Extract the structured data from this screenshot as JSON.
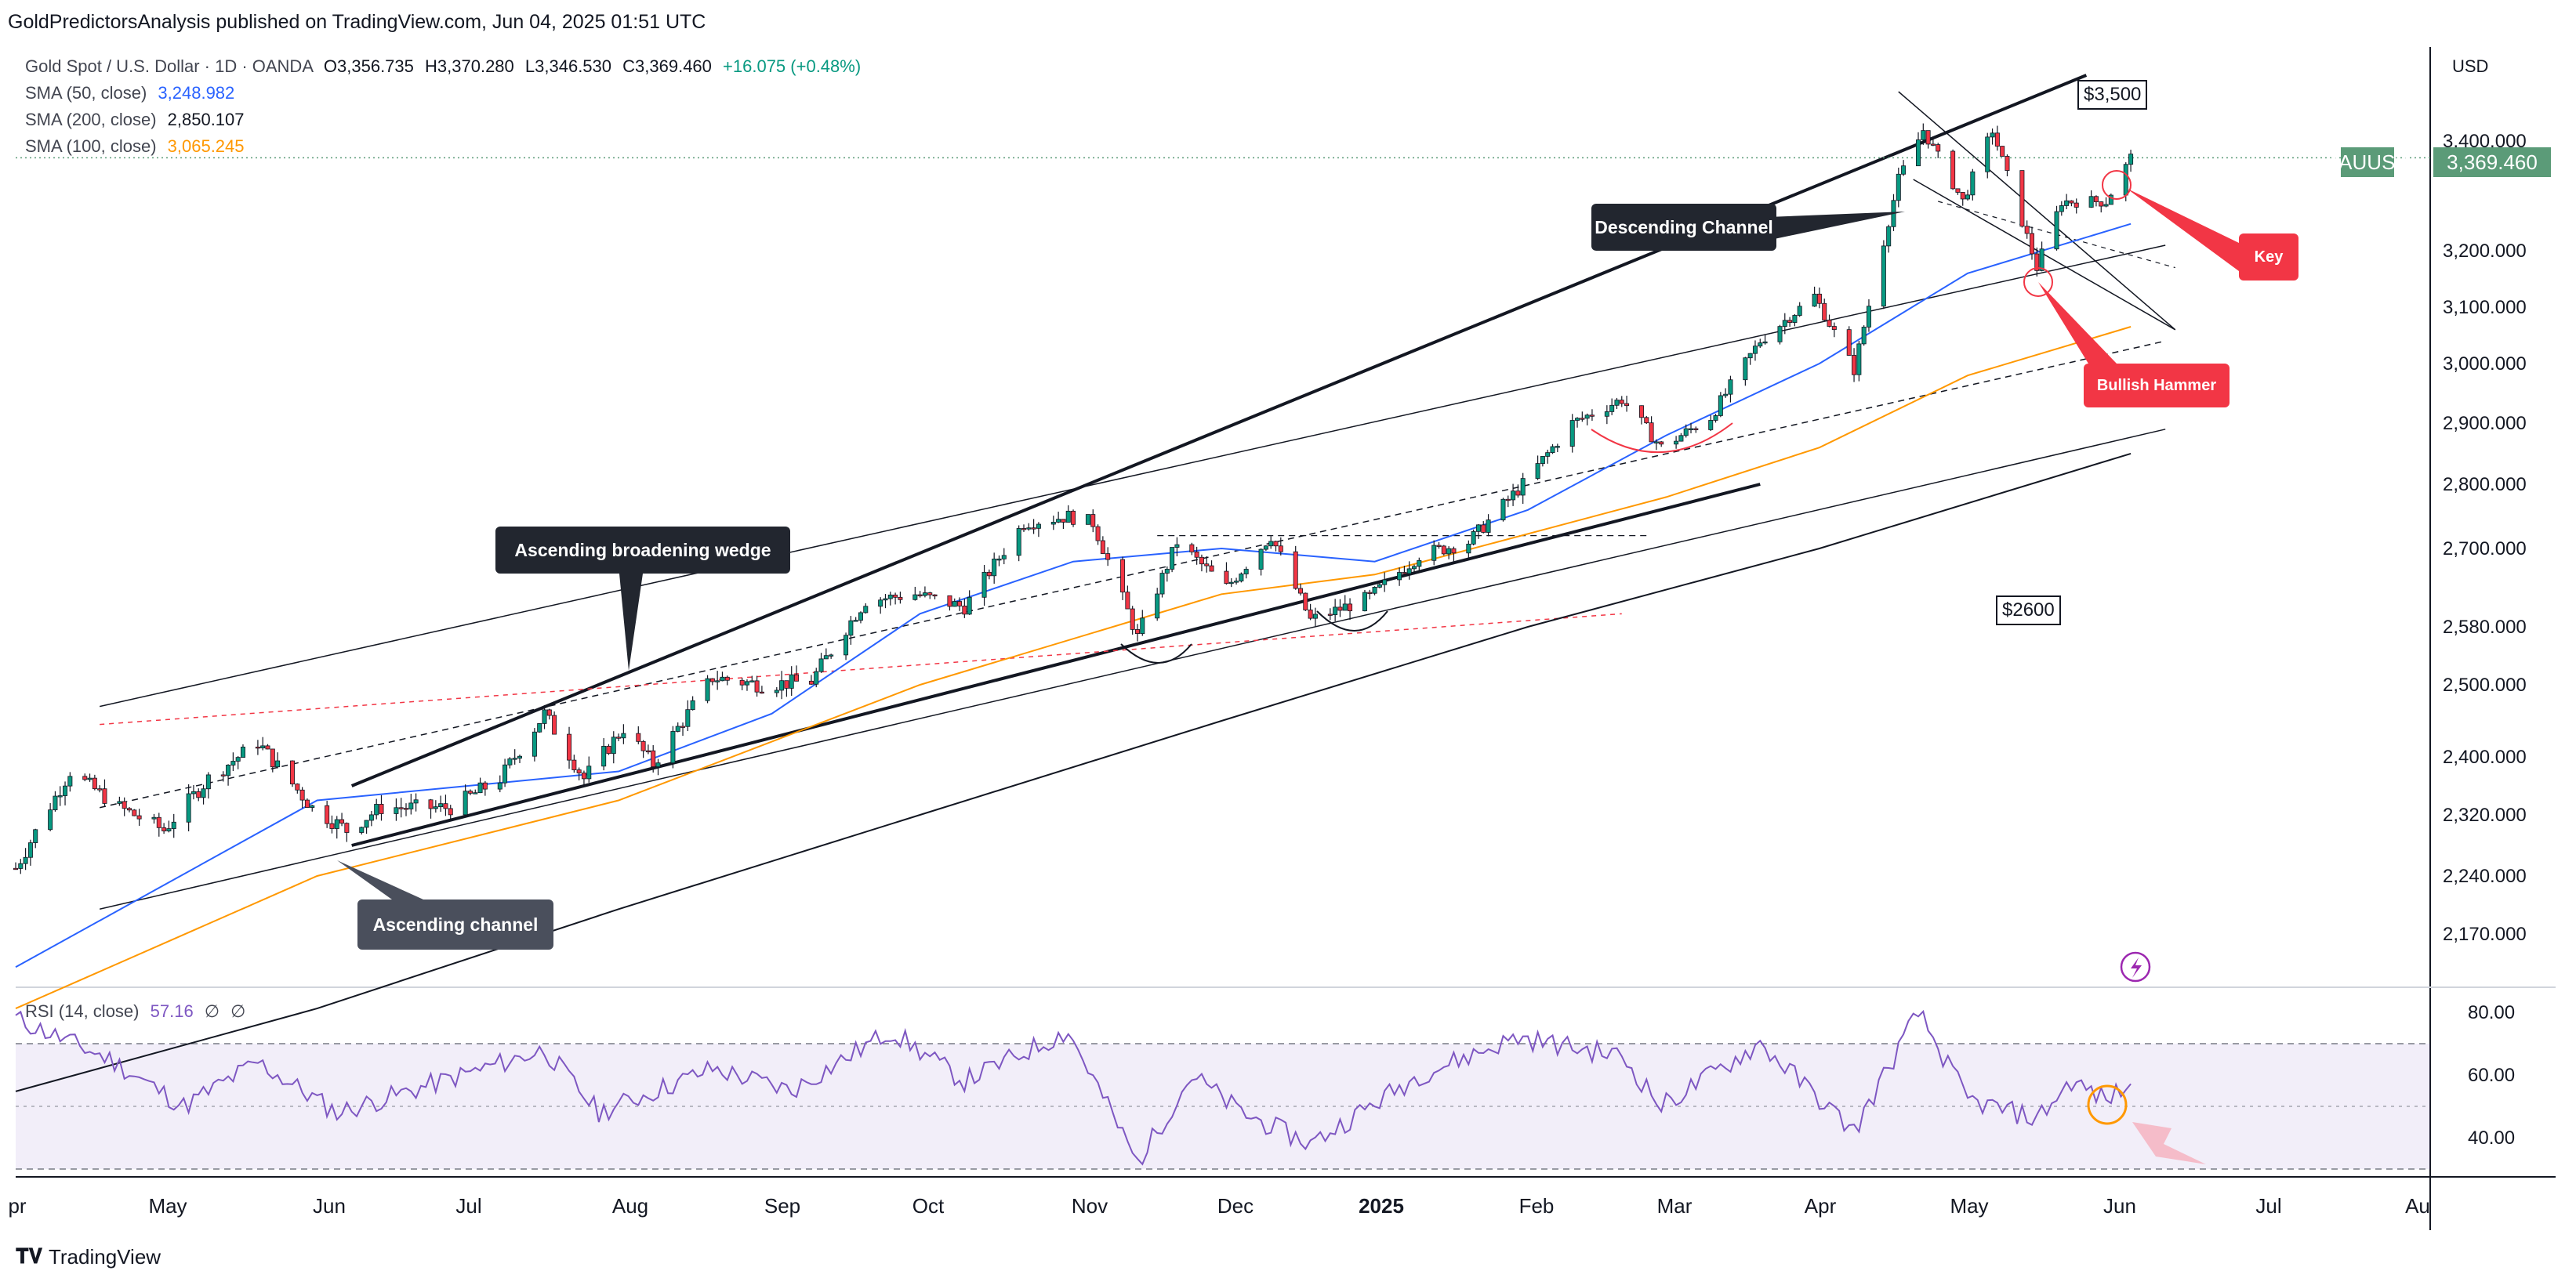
{
  "header": {
    "publisher_line": "GoldPredictorsAnalysis published on TradingView.com, Jun 04, 2025 01:51 UTC"
  },
  "legend": {
    "symbol_line": "Gold Spot / U.S. Dollar · 1D · OANDA",
    "ohlc": {
      "o": "O3,356.735",
      "h": "H3,370.280",
      "l": "L3,346.530",
      "c": "C3,369.460",
      "change": "+16.075 (+0.48%)"
    },
    "sma50": {
      "label": "SMA (50, close)",
      "value": "3,248.982",
      "color": "#2962ff"
    },
    "sma200": {
      "label": "SMA (200, close)",
      "value": "2,850.107",
      "color": "#131722"
    },
    "sma100": {
      "label": "SMA (100, close)",
      "value": "3,065.245",
      "color": "#ff9800"
    }
  },
  "rsi_legend": {
    "label": "RSI (14, close)",
    "value": "57.16",
    "extra1": "∅",
    "extra2": "∅"
  },
  "axis": {
    "currency": "USD",
    "ticker": "XAUUSD",
    "last_price": "3,369.460"
  },
  "annotations": {
    "descending_channel": "Descending Channel",
    "ascending_broadening_wedge": "Ascending broadening wedge",
    "ascending_channel": "Ascending channel",
    "key": "Key",
    "bullish_hammer": "Bullish Hammer",
    "level_3500": "$3,500",
    "level_2600": "$2600"
  },
  "footer": {
    "brand": "TradingView"
  },
  "colors": {
    "up": "#089981",
    "down": "#f23645",
    "rsi": "#7e57c2",
    "sma50": "#2962ff",
    "sma100": "#ff9800",
    "sma200": "#131722"
  },
  "chart_data": {
    "type": "candlestick",
    "title": "Gold Spot / U.S. Dollar · 1D · OANDA",
    "price_ticks": [
      3400,
      3200,
      3100,
      3000,
      2900,
      2800,
      2700,
      2580,
      2500,
      2400,
      2320,
      2240,
      2170
    ],
    "price_tick_labels": [
      "3,400.000",
      "3,200.000",
      "3,100.000",
      "3,000.000",
      "2,900.000",
      "2,800.000",
      "2,700.000",
      "2,580.000",
      "2,500.000",
      "2,400.000",
      "2,320.000",
      "2,240.000",
      "2,170.000"
    ],
    "x_labels": [
      "pr",
      "May",
      "Jun",
      "Jul",
      "Aug",
      "Sep",
      "Oct",
      "Nov",
      "Dec",
      "2025",
      "Feb",
      "Mar",
      "Apr",
      "May",
      "Jun",
      "Jul",
      "Au"
    ],
    "rsi_ticks": [
      80,
      60,
      40
    ],
    "rsi_tick_labels": [
      "80.00",
      "60.00",
      "40.00"
    ],
    "close_path": [
      [
        "2024-04-01",
        2250
      ],
      [
        "2024-04-12",
        2380
      ],
      [
        "2024-04-22",
        2330
      ],
      [
        "2024-05-01",
        2300
      ],
      [
        "2024-05-10",
        2370
      ],
      [
        "2024-05-20",
        2420
      ],
      [
        "2024-05-31",
        2330
      ],
      [
        "2024-06-07",
        2300
      ],
      [
        "2024-06-14",
        2330
      ],
      [
        "2024-06-28",
        2330
      ],
      [
        "2024-07-08",
        2370
      ],
      [
        "2024-07-17",
        2460
      ],
      [
        "2024-07-25",
        2370
      ],
      [
        "2024-08-02",
        2440
      ],
      [
        "2024-08-08",
        2390
      ],
      [
        "2024-08-20",
        2510
      ],
      [
        "2024-08-30",
        2500
      ],
      [
        "2024-09-09",
        2505
      ],
      [
        "2024-09-20",
        2620
      ],
      [
        "2024-09-30",
        2630
      ],
      [
        "2024-10-10",
        2610
      ],
      [
        "2024-10-22",
        2740
      ],
      [
        "2024-10-31",
        2750
      ],
      [
        "2024-11-05",
        2740
      ],
      [
        "2024-11-14",
        2565
      ],
      [
        "2024-11-22",
        2710
      ],
      [
        "2024-12-02",
        2640
      ],
      [
        "2024-12-11",
        2720
      ],
      [
        "2024-12-19",
        2590
      ],
      [
        "2024-12-31",
        2625
      ],
      [
        "2025-01-10",
        2690
      ],
      [
        "2025-01-20",
        2710
      ],
      [
        "2025-01-31",
        2800
      ],
      [
        "2025-02-10",
        2900
      ],
      [
        "2025-02-20",
        2940
      ],
      [
        "2025-02-28",
        2860
      ],
      [
        "2025-03-10",
        2910
      ],
      [
        "2025-03-20",
        3040
      ],
      [
        "2025-03-31",
        3120
      ],
      [
        "2025-04-08",
        2990
      ],
      [
        "2025-04-17",
        3330
      ],
      [
        "2025-04-22",
        3420
      ],
      [
        "2025-04-30",
        3290
      ],
      [
        "2025-05-06",
        3420
      ],
      [
        "2025-05-15",
        3170
      ],
      [
        "2025-05-20",
        3290
      ],
      [
        "2025-05-29",
        3290
      ],
      [
        "2025-06-03",
        3369.46
      ]
    ],
    "sma50": [
      [
        "2024-04-01",
        2130
      ],
      [
        "2024-06-01",
        2340
      ],
      [
        "2024-08-01",
        2380
      ],
      [
        "2024-09-01",
        2460
      ],
      [
        "2024-10-01",
        2600
      ],
      [
        "2024-11-01",
        2680
      ],
      [
        "2024-12-01",
        2700
      ],
      [
        "2025-01-01",
        2680
      ],
      [
        "2025-02-01",
        2760
      ],
      [
        "2025-03-01",
        2880
      ],
      [
        "2025-04-01",
        3000
      ],
      [
        "2025-05-01",
        3160
      ],
      [
        "2025-06-03",
        3248.98
      ]
    ],
    "sma100": [
      [
        "2024-04-01",
        2080
      ],
      [
        "2024-06-01",
        2240
      ],
      [
        "2024-08-01",
        2340
      ],
      [
        "2024-10-01",
        2500
      ],
      [
        "2024-12-01",
        2630
      ],
      [
        "2025-01-01",
        2660
      ],
      [
        "2025-03-01",
        2780
      ],
      [
        "2025-04-01",
        2860
      ],
      [
        "2025-05-01",
        2980
      ],
      [
        "2025-06-03",
        3065.25
      ]
    ],
    "sma200": [
      [
        "2024-04-01",
        1980
      ],
      [
        "2024-06-01",
        2080
      ],
      [
        "2024-08-01",
        2200
      ],
      [
        "2024-10-01",
        2320
      ],
      [
        "2024-12-01",
        2450
      ],
      [
        "2025-02-01",
        2580
      ],
      [
        "2025-04-01",
        2700
      ],
      [
        "2025-06-03",
        2850.11
      ]
    ],
    "rsi": [
      [
        "2024-04-01",
        78
      ],
      [
        "2024-04-20",
        65
      ],
      [
        "2024-05-05",
        50
      ],
      [
        "2024-05-20",
        64
      ],
      [
        "2024-06-05",
        48
      ],
      [
        "2024-06-20",
        55
      ],
      [
        "2024-07-17",
        68
      ],
      [
        "2024-07-28",
        48
      ],
      [
        "2024-08-20",
        62
      ],
      [
        "2024-09-05",
        55
      ],
      [
        "2024-09-25",
        74
      ],
      [
        "2024-10-10",
        58
      ],
      [
        "2024-10-31",
        74
      ],
      [
        "2024-11-14",
        32
      ],
      [
        "2024-11-25",
        60
      ],
      [
        "2024-12-05",
        48
      ],
      [
        "2024-12-19",
        38
      ],
      [
        "2025-01-10",
        60
      ],
      [
        "2025-01-30",
        72
      ],
      [
        "2025-02-20",
        66
      ],
      [
        "2025-02-28",
        50
      ],
      [
        "2025-03-20",
        70
      ],
      [
        "2025-04-08",
        42
      ],
      [
        "2025-04-21",
        80
      ],
      [
        "2025-05-01",
        52
      ],
      [
        "2025-05-15",
        46
      ],
      [
        "2025-05-22",
        58
      ],
      [
        "2025-05-29",
        52
      ],
      [
        "2025-06-03",
        57.16
      ]
    ],
    "levels": {
      "resistance": 3500,
      "support": 2600
    }
  }
}
